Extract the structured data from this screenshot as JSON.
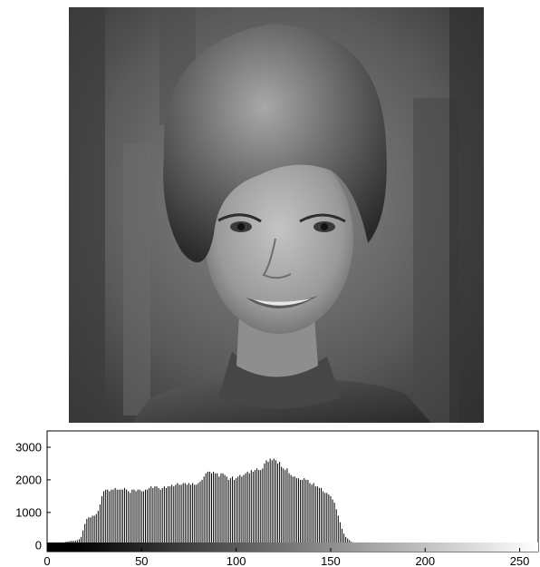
{
  "figure": {
    "photo": {
      "kind": "grayscale portrait photograph",
      "subject": "smiling woman with bouffant hairstyle"
    }
  },
  "chart_data": {
    "type": "bar",
    "title": "",
    "xlabel": "",
    "ylabel": "",
    "xlim": [
      0,
      255
    ],
    "ylim": [
      -200,
      3500
    ],
    "xticks": [
      0,
      50,
      100,
      150,
      200,
      250
    ],
    "yticks": [
      0,
      1000,
      2000,
      3000
    ],
    "grid": false,
    "bar_color": "#000000",
    "gray_ramp": true,
    "bin_start": 0,
    "values": [
      50,
      40,
      50,
      50,
      60,
      50,
      60,
      70,
      80,
      70,
      100,
      110,
      120,
      130,
      130,
      140,
      150,
      180,
      250,
      450,
      650,
      800,
      850,
      850,
      900,
      900,
      950,
      1050,
      1250,
      1500,
      1650,
      1700,
      1700,
      1650,
      1700,
      1700,
      1750,
      1700,
      1700,
      1700,
      1700,
      1750,
      1700,
      1650,
      1600,
      1700,
      1700,
      1650,
      1700,
      1700,
      1650,
      1650,
      1700,
      1700,
      1750,
      1800,
      1750,
      1800,
      1800,
      1750,
      1700,
      1750,
      1800,
      1750,
      1800,
      1800,
      1850,
      1800,
      1850,
      1900,
      1850,
      1850,
      1900,
      1900,
      1850,
      1900,
      1850,
      1900,
      1850,
      1850,
      1900,
      1950,
      2000,
      2100,
      2200,
      2250,
      2250,
      2200,
      2250,
      2200,
      2200,
      2100,
      2200,
      2200,
      2150,
      2100,
      2000,
      2050,
      2100,
      2000,
      2050,
      2100,
      2150,
      2100,
      2150,
      2200,
      2250,
      2200,
      2300,
      2250,
      2300,
      2350,
      2300,
      2300,
      2350,
      2500,
      2600,
      2550,
      2650,
      2600,
      2650,
      2600,
      2500,
      2550,
      2400,
      2350,
      2300,
      2350,
      2200,
      2150,
      2100,
      2100,
      2050,
      2050,
      2000,
      2000,
      2050,
      2000,
      2000,
      1900,
      1850,
      1900,
      1800,
      1800,
      1750,
      1750,
      1650,
      1600,
      1600,
      1550,
      1500,
      1400,
      1300,
      1100,
      900,
      700,
      500,
      350,
      250,
      200,
      150,
      100,
      80,
      60,
      50,
      40,
      30,
      30,
      20,
      20,
      15,
      15,
      10,
      10,
      10,
      8,
      6,
      5,
      5,
      4,
      4,
      3,
      3,
      2,
      2,
      2,
      1
    ]
  }
}
